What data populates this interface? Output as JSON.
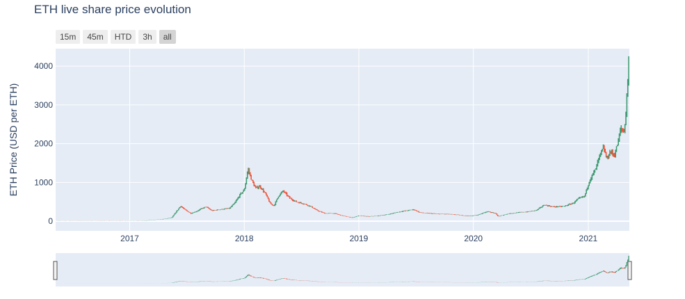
{
  "title": "ETH live share price evolution",
  "range_selector": {
    "buttons": [
      "15m",
      "45m",
      "HTD",
      "3h",
      "all"
    ],
    "active": "all"
  },
  "colors": {
    "increasing": "#3d9970",
    "decreasing": "#ef553b",
    "plot_bg": "#e5ecf6",
    "grid": "#ffffff",
    "text": "#2a3f5f"
  },
  "chart_data": {
    "type": "candlestick",
    "title": "ETH live share price evolution",
    "ylabel": "ETH Price (USD per ETH)",
    "xlabel": "",
    "xlim": [
      "2016-05-10",
      "2021-05-12"
    ],
    "ylim": [
      -250,
      4450
    ],
    "grid": true,
    "rangeslider": true,
    "x_ticks": [
      "2017",
      "2018",
      "2019",
      "2020",
      "2021"
    ],
    "y_ticks": [
      0,
      1000,
      2000,
      3000,
      4000
    ],
    "series": [
      {
        "increasing_color": "#3d9970",
        "decreasing_color": "#ef553b",
        "dates": [
          "2016-05-15",
          "2016-07-01",
          "2016-09-01",
          "2016-11-01",
          "2017-01-01",
          "2017-02-15",
          "2017-03-15",
          "2017-04-15",
          "2017-05-15",
          "2017-06-12",
          "2017-06-25",
          "2017-07-15",
          "2017-08-01",
          "2017-08-20",
          "2017-09-01",
          "2017-09-20",
          "2017-10-15",
          "2017-11-15",
          "2017-12-01",
          "2017-12-20",
          "2018-01-01",
          "2018-01-13",
          "2018-01-25",
          "2018-02-06",
          "2018-02-20",
          "2018-03-10",
          "2018-03-25",
          "2018-04-06",
          "2018-04-20",
          "2018-05-05",
          "2018-05-25",
          "2018-06-15",
          "2018-07-10",
          "2018-08-01",
          "2018-08-20",
          "2018-09-15",
          "2018-10-15",
          "2018-11-15",
          "2018-12-10",
          "2019-01-01",
          "2019-02-01",
          "2019-03-01",
          "2019-04-01",
          "2019-05-15",
          "2019-06-10",
          "2019-06-25",
          "2019-07-15",
          "2019-08-15",
          "2019-09-15",
          "2019-10-15",
          "2019-11-15",
          "2019-12-20",
          "2020-01-15",
          "2020-02-14",
          "2020-03-12",
          "2020-03-20",
          "2020-04-20",
          "2020-05-20",
          "2020-06-20",
          "2020-07-20",
          "2020-08-14",
          "2020-09-10",
          "2020-10-15",
          "2020-11-15",
          "2020-12-01",
          "2020-12-20",
          "2021-01-05",
          "2021-01-15",
          "2021-01-25",
          "2021-02-05",
          "2021-02-19",
          "2021-03-01",
          "2021-03-12",
          "2021-03-25",
          "2021-04-05",
          "2021-04-15",
          "2021-04-25",
          "2021-05-01",
          "2021-05-06",
          "2021-05-10",
          "2021-05-12"
        ],
        "values": [
          10,
          12,
          12,
          10,
          8,
          12,
          30,
          50,
          90,
          390,
          300,
          200,
          250,
          330,
          370,
          270,
          300,
          330,
          460,
          700,
          800,
          1350,
          1050,
          850,
          900,
          700,
          450,
          400,
          650,
          780,
          600,
          500,
          450,
          380,
          280,
          200,
          200,
          130,
          90,
          140,
          120,
          135,
          170,
          250,
          280,
          300,
          220,
          200,
          185,
          180,
          160,
          130,
          160,
          250,
          200,
          120,
          190,
          220,
          240,
          280,
          420,
          370,
          380,
          470,
          580,
          640,
          1050,
          1200,
          1350,
          1650,
          1900,
          1600,
          1800,
          1700,
          2000,
          2400,
          2300,
          2800,
          3500,
          4200,
          3900
        ]
      }
    ]
  }
}
